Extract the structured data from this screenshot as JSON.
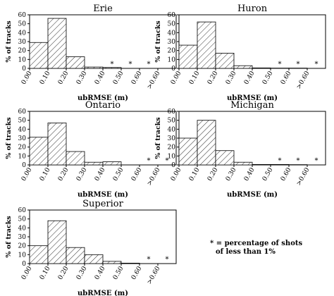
{
  "figure": {
    "note_line1": "* = percentage of shots",
    "note_line2": "of less than 1%"
  },
  "chart_data": [
    {
      "type": "bar",
      "title": "Erie",
      "xlabel": "ubRMSE (m)",
      "ylabel": "% of tracks",
      "ylim": [
        0,
        60
      ],
      "yticks": [
        0,
        10,
        20,
        30,
        40,
        50,
        60
      ],
      "xticks": [
        "0.00",
        "0.10",
        "0.20",
        "0.30",
        "0.40",
        "0.50",
        "0.60",
        ">0.60"
      ],
      "categories": [
        "0.00-0.10",
        "0.10-0.20",
        "0.20-0.30",
        "0.30-0.40",
        "0.40-0.50",
        "0.50-0.60",
        "0.60-0.70",
        ">0.60"
      ],
      "values": [
        29,
        56,
        13,
        1.5,
        1,
        0,
        0,
        0
      ],
      "asterisks": [
        4,
        5,
        6
      ],
      "grid": false
    },
    {
      "type": "bar",
      "title": "Huron",
      "xlabel": "ubRMSE (m)",
      "ylabel": "% of tracks",
      "ylim": [
        0,
        60
      ],
      "yticks": [
        0,
        10,
        20,
        30,
        40,
        50,
        60
      ],
      "xticks": [
        "0.00",
        "0.10",
        "0.20",
        "0.30",
        "0.40",
        "0.50",
        "0.60",
        ">0.60"
      ],
      "categories": [
        "0.00-0.10",
        "0.10-0.20",
        "0.20-0.30",
        "0.30-0.40",
        "0.40-0.50",
        "0.50-0.60",
        "0.60-0.70",
        ">0.60"
      ],
      "values": [
        26,
        52,
        17,
        3,
        0.5,
        0.3,
        0.3,
        0
      ],
      "asterisks": [
        5,
        6,
        7
      ],
      "grid": false
    },
    {
      "type": "bar",
      "title": "Ontario",
      "xlabel": "ubRMSE (m)",
      "ylabel": "% of tracks",
      "ylim": [
        0,
        60
      ],
      "yticks": [
        0,
        10,
        20,
        30,
        40,
        50,
        60
      ],
      "xticks": [
        "0.00",
        "0.10",
        "0.20",
        "0.30",
        "0.40",
        "0.50",
        "0.60",
        ">0.60"
      ],
      "categories": [
        "0.00-0.10",
        "0.10-0.20",
        "0.20-0.30",
        "0.30-0.40",
        "0.40-0.50",
        "0.50-0.60",
        "0.60-0.70",
        ">0.60"
      ],
      "values": [
        31,
        47,
        15,
        3,
        3.5,
        0,
        0,
        0
      ],
      "asterisks": [
        6,
        7
      ],
      "grid": false
    },
    {
      "type": "bar",
      "title": "Michigan",
      "xlabel": "ubRMSE (m)",
      "ylabel": "% of tracks",
      "ylim": [
        0,
        60
      ],
      "yticks": [
        0,
        10,
        20,
        30,
        40,
        50,
        60
      ],
      "xticks": [
        "0.00",
        "0.10",
        "0.20",
        "0.30",
        "0.40",
        "0.50",
        "0.60",
        ">0.60"
      ],
      "categories": [
        "0.00-0.10",
        "0.10-0.20",
        "0.20-0.30",
        "0.30-0.40",
        "0.40-0.50",
        "0.50-0.60",
        "0.60-0.70",
        ">0.60"
      ],
      "values": [
        30,
        50,
        16,
        3,
        0.5,
        0.5,
        0.3,
        0
      ],
      "asterisks": [
        5,
        6,
        7
      ],
      "grid": false
    },
    {
      "type": "bar",
      "title": "Superior",
      "xlabel": "ubRMSE (m)",
      "ylabel": "% of tracks",
      "ylim": [
        0,
        60
      ],
      "yticks": [
        0,
        10,
        20,
        30,
        40,
        50,
        60
      ],
      "xticks": [
        "0.00",
        "0.10",
        "0.20",
        "0.30",
        "0.40",
        "0.50",
        "0.60",
        ">0.60"
      ],
      "categories": [
        "0.00-0.10",
        "0.10-0.20",
        "0.20-0.30",
        "0.30-0.40",
        "0.40-0.50",
        "0.50-0.60",
        "0.60-0.70",
        ">0.60"
      ],
      "values": [
        20,
        48,
        18,
        10,
        2.5,
        0.5,
        0,
        0
      ],
      "asterisks": [
        6,
        7
      ],
      "grid": false
    }
  ]
}
